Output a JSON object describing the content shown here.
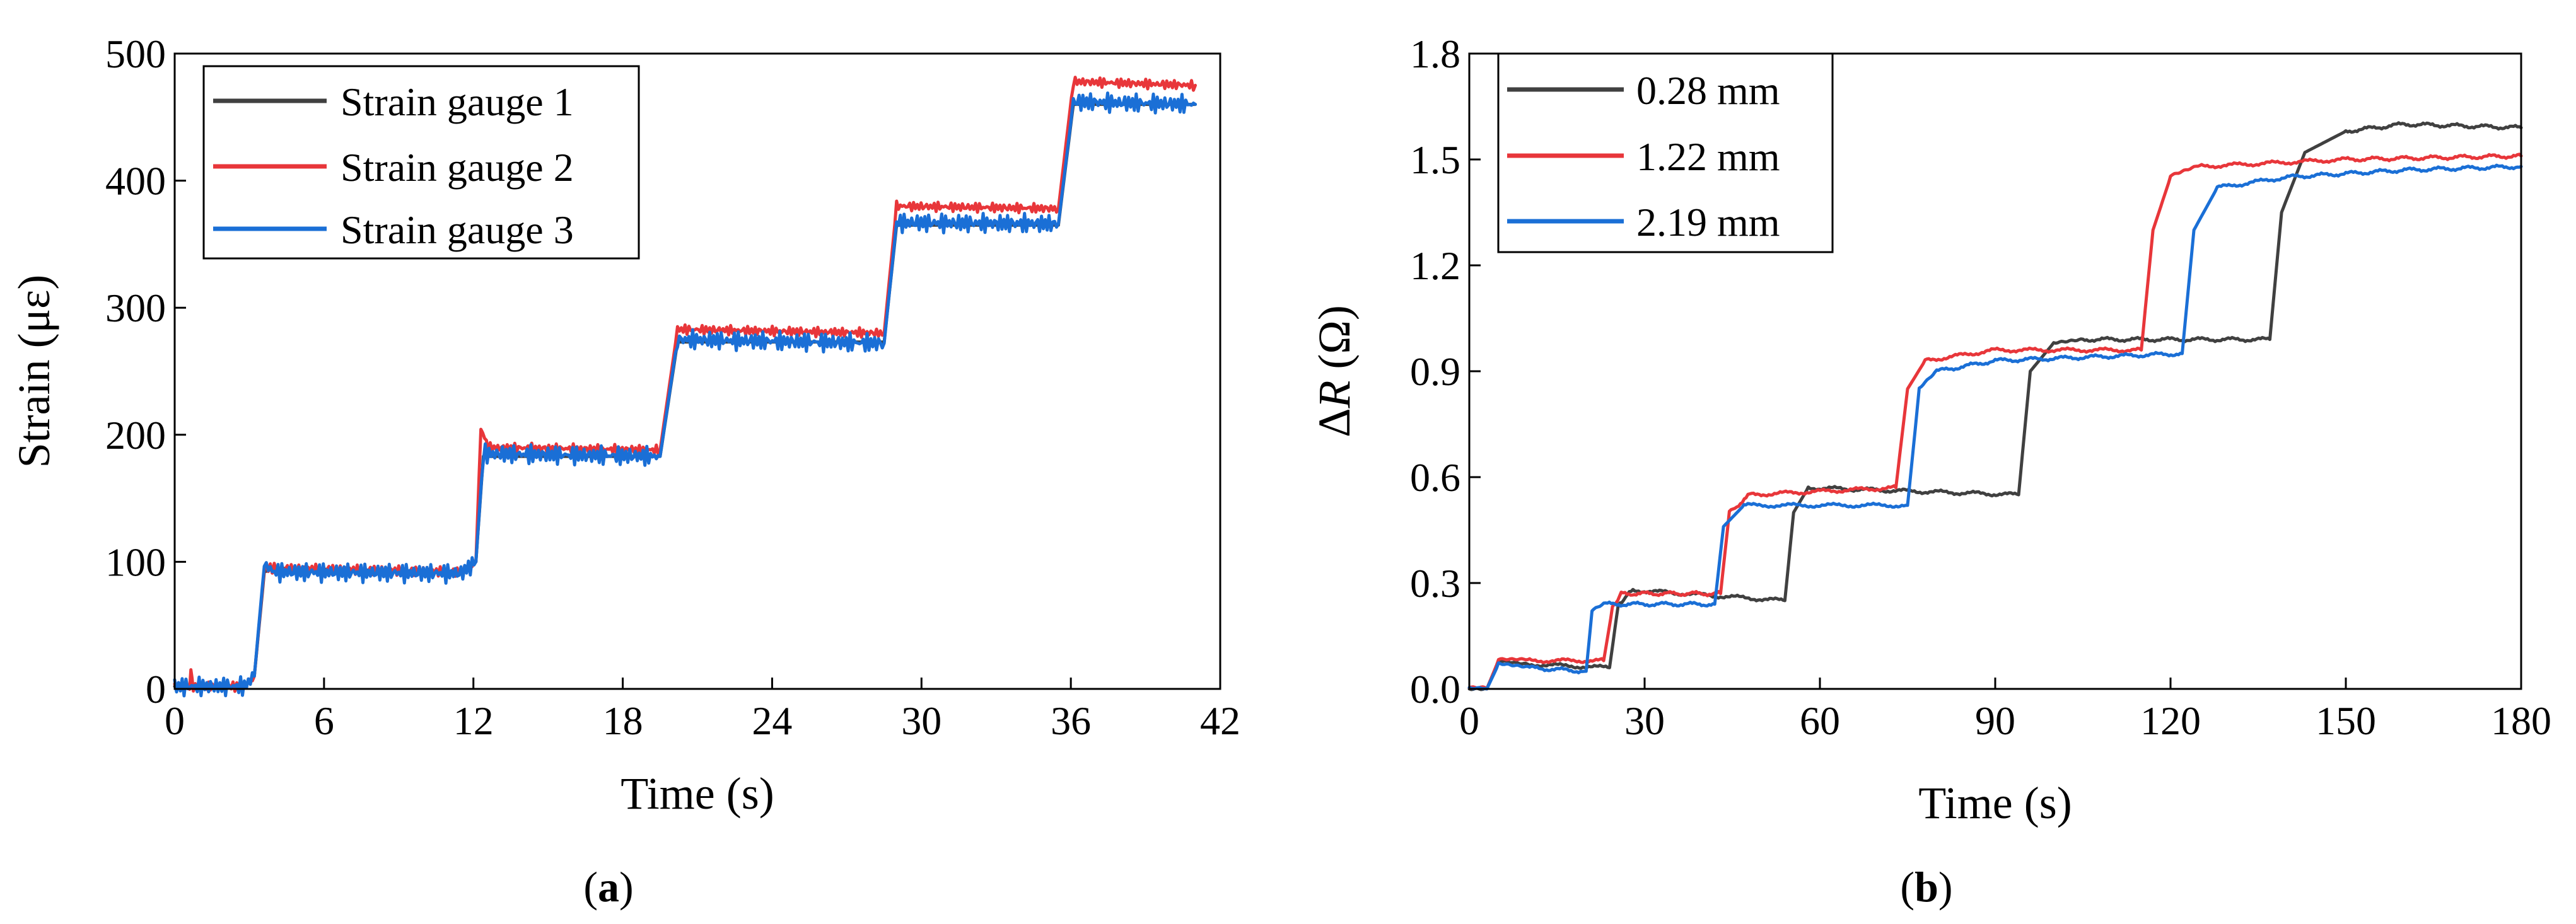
{
  "chart_data": [
    {
      "type": "line",
      "panel": "a",
      "caption_letter": "a",
      "caption_open": "(",
      "caption_close": ")",
      "xlabel": "Time (s)",
      "ylabel": "Strain (με)",
      "xlim": [
        0,
        42
      ],
      "ylim": [
        0,
        500
      ],
      "xticks": [
        0,
        6,
        12,
        18,
        24,
        30,
        36,
        42
      ],
      "yticks": [
        0,
        100,
        200,
        300,
        400,
        500
      ],
      "legend_position": "top-left",
      "series": [
        {
          "name": "Strain gauge 1",
          "color": "#404040",
          "points": [
            [
              0,
              2
            ],
            [
              2.8,
              2
            ],
            [
              3.2,
              10
            ],
            [
              3.6,
              92
            ],
            [
              4,
              95
            ],
            [
              11.5,
              92
            ],
            [
              12.1,
              100
            ],
            [
              12.4,
              183
            ],
            [
              19.5,
              183
            ],
            [
              20.2,
              273
            ],
            [
              28.5,
              273
            ],
            [
              29,
              365
            ],
            [
              35.5,
              365
            ],
            [
              36.1,
              460
            ],
            [
              41,
              460
            ]
          ],
          "oscillation": 0
        },
        {
          "name": "Strain gauge 2",
          "color": "#e8363a",
          "points": [
            [
              0,
              2
            ],
            [
              0.6,
              2
            ],
            [
              0.65,
              14
            ],
            [
              0.75,
              2
            ],
            [
              2.8,
              2
            ],
            [
              3.2,
              10
            ],
            [
              3.6,
              95
            ],
            [
              4,
              95
            ],
            [
              11.5,
              92
            ],
            [
              12.1,
              100
            ],
            [
              12.3,
              205
            ],
            [
              12.6,
              190
            ],
            [
              19.5,
              188
            ],
            [
              20.2,
              283
            ],
            [
              28.5,
              280
            ],
            [
              29,
              380
            ],
            [
              35.5,
              378
            ],
            [
              36.1,
              478
            ],
            [
              41,
              475
            ]
          ],
          "oscillation": 4
        },
        {
          "name": "Strain gauge 3",
          "color": "#1a6fd6",
          "points": [
            [
              0,
              2
            ],
            [
              2.8,
              2
            ],
            [
              3.2,
              10
            ],
            [
              3.6,
              98
            ],
            [
              4,
              92
            ],
            [
              11.5,
              91
            ],
            [
              12.1,
              100
            ],
            [
              12.4,
              185
            ],
            [
              19.5,
              183
            ],
            [
              20.2,
              275
            ],
            [
              28.5,
              272
            ],
            [
              29,
              367
            ],
            [
              35.5,
              366
            ],
            [
              36.1,
              462
            ],
            [
              41,
              460
            ]
          ],
          "oscillation": 8
        }
      ]
    },
    {
      "type": "line",
      "panel": "b",
      "caption_letter": "b",
      "caption_open": "(",
      "caption_close": ")",
      "xlabel": "Time (s)",
      "ylabel_prefix": "Δ",
      "ylabel_var": "R",
      "ylabel_suffix": " (Ω)",
      "xlim": [
        0,
        180
      ],
      "ylim": [
        0,
        1.8
      ],
      "xticks": [
        0,
        30,
        60,
        90,
        120,
        150,
        180
      ],
      "yticks": [
        "0.0",
        "0.3",
        "0.6",
        "0.9",
        "1.2",
        "1.5",
        "1.8"
      ],
      "legend_position": "top-left",
      "series": [
        {
          "name": "0.28 mm",
          "color": "#404040",
          "points": [
            [
              0,
              0
            ],
            [
              3,
              0
            ],
            [
              5,
              0.08
            ],
            [
              10,
              0.07
            ],
            [
              24,
              0.06
            ],
            [
              25.5,
              0.24
            ],
            [
              28,
              0.28
            ],
            [
              54,
              0.25
            ],
            [
              55.5,
              0.5
            ],
            [
              58,
              0.57
            ],
            [
              94,
              0.55
            ],
            [
              96,
              0.9
            ],
            [
              100,
              0.98
            ],
            [
              105,
              0.99
            ],
            [
              137,
              0.99
            ],
            [
              139,
              1.35
            ],
            [
              143,
              1.52
            ],
            [
              150,
              1.58
            ],
            [
              160,
              1.6
            ],
            [
              180,
              1.59
            ]
          ],
          "oscillation": 0.006
        },
        {
          "name": "1.22 mm",
          "color": "#e8363a",
          "points": [
            [
              0,
              0
            ],
            [
              3,
              0
            ],
            [
              5,
              0.08
            ],
            [
              10,
              0.08
            ],
            [
              23,
              0.08
            ],
            [
              24.5,
              0.23
            ],
            [
              26,
              0.27
            ],
            [
              43,
              0.27
            ],
            [
              44.5,
              0.5
            ],
            [
              48,
              0.55
            ],
            [
              73,
              0.57
            ],
            [
              75,
              0.85
            ],
            [
              78,
              0.93
            ],
            [
              90,
              0.96
            ],
            [
              115,
              0.96
            ],
            [
              117,
              1.3
            ],
            [
              120,
              1.45
            ],
            [
              125,
              1.48
            ],
            [
              150,
              1.5
            ],
            [
              180,
              1.51
            ]
          ],
          "oscillation": 0.006
        },
        {
          "name": "2.19 mm",
          "color": "#1a6fd6",
          "points": [
            [
              0,
              0
            ],
            [
              3,
              0
            ],
            [
              5,
              0.07
            ],
            [
              10,
              0.06
            ],
            [
              20,
              0.05
            ],
            [
              21,
              0.22
            ],
            [
              23,
              0.24
            ],
            [
              42,
              0.24
            ],
            [
              43.5,
              0.46
            ],
            [
              47,
              0.52
            ],
            [
              75,
              0.52
            ],
            [
              77,
              0.85
            ],
            [
              80,
              0.9
            ],
            [
              90,
              0.93
            ],
            [
              122,
              0.95
            ],
            [
              124,
              1.3
            ],
            [
              128,
              1.42
            ],
            [
              140,
              1.45
            ],
            [
              160,
              1.47
            ],
            [
              180,
              1.48
            ]
          ],
          "oscillation": 0.006
        }
      ]
    }
  ]
}
